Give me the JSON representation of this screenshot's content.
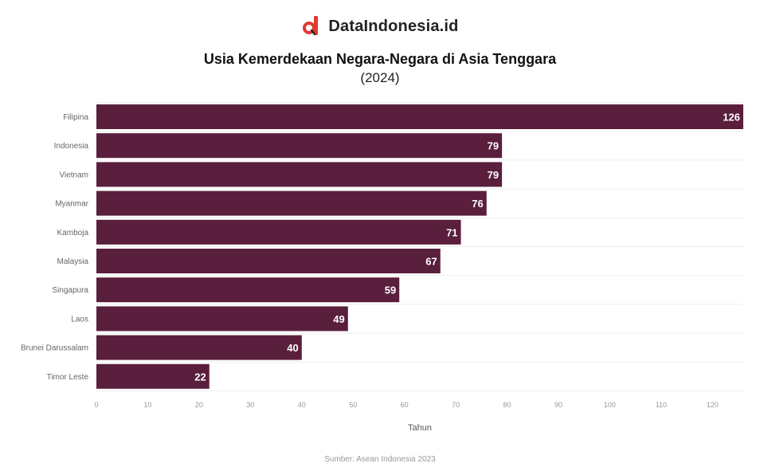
{
  "brand": {
    "name": "DataIndonesia.id",
    "logo_icon": "dataindonesia-logo-icon",
    "logo_color": "#e03a2f"
  },
  "chart_data": {
    "type": "bar",
    "orientation": "horizontal",
    "title": "Usia Kemerdekaan Negara-Negara di Asia Tenggara",
    "subtitle": "(2024)",
    "xlabel": "Tahun",
    "ylabel": "",
    "categories": [
      "Filipina",
      "Indonesia",
      "Vietnam",
      "Myanmar",
      "Kamboja",
      "Malaysia",
      "Singapura",
      "Laos",
      "Brunei Darussalam",
      "Timor Leste"
    ],
    "values": [
      126,
      79,
      79,
      76,
      71,
      67,
      59,
      49,
      40,
      22
    ],
    "xlim": [
      0,
      126
    ],
    "xticks": [
      0,
      10,
      20,
      30,
      40,
      50,
      60,
      70,
      80,
      90,
      100,
      110,
      120
    ],
    "bar_color": "#5a1f3d",
    "data_labels": true,
    "grid": true
  },
  "source": "Sumber: Asean Indonesia 2023"
}
